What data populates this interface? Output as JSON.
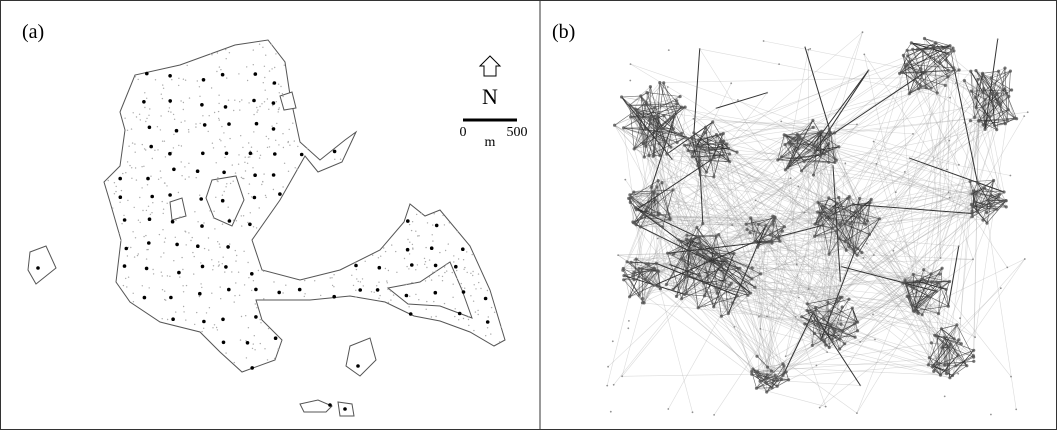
{
  "panels": [
    {
      "label": "(a)",
      "north_label": "N",
      "scale_bar": {
        "ticks": [
          0,
          500
        ],
        "unit": "m"
      }
    },
    {
      "label": "(b)"
    }
  ]
}
